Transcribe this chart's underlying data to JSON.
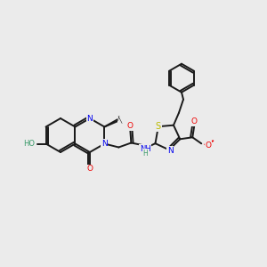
{
  "background_color": "#ebebeb",
  "bond_color": "#1a1a1a",
  "atom_colors": {
    "N": "#0000ee",
    "O": "#ee0000",
    "S": "#bbbb00",
    "HO": "#3a9a6a",
    "C": "#1a1a1a"
  },
  "figsize": [
    3.0,
    3.0
  ],
  "dpi": 100
}
